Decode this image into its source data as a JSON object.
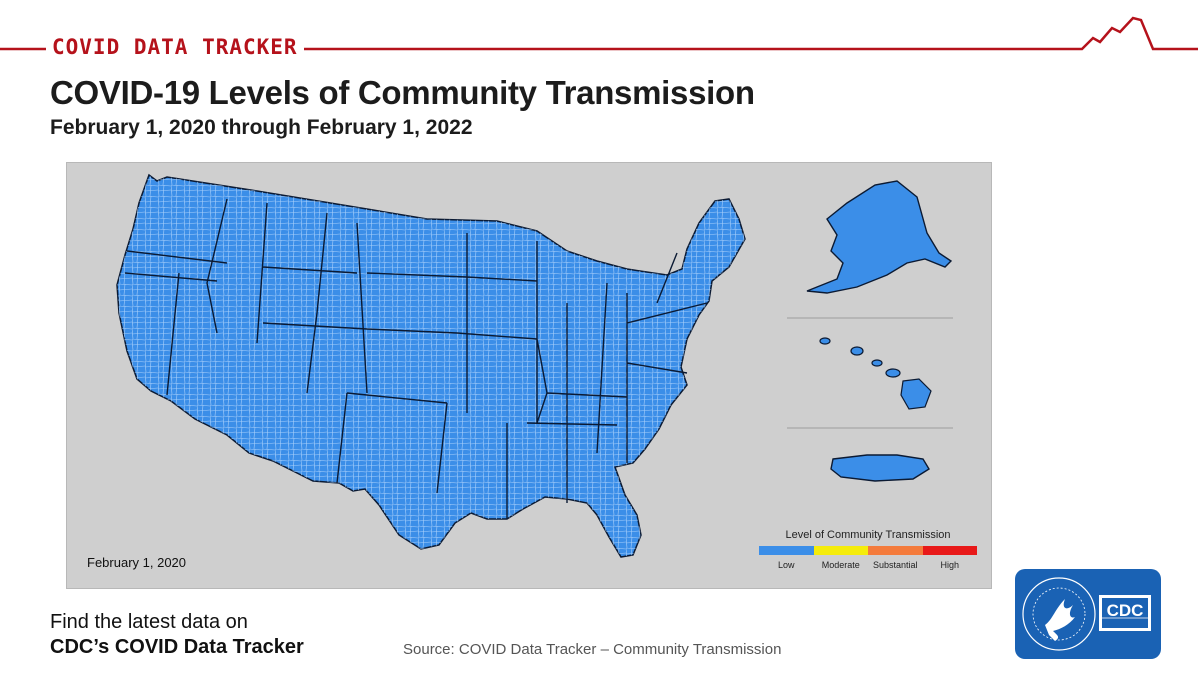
{
  "header": {
    "tracker_label": "COVID DATA TRACKER",
    "title": "COVID-19 Levels of Community Transmission",
    "subtitle": "February 1, 2020 through February 1, 2022"
  },
  "map": {
    "date": "February 1, 2020",
    "default_fill": "#3b8ee8",
    "border_color": "#0b1a33",
    "legend": {
      "title": "Level of Community Transmission",
      "levels": [
        {
          "label": "Low",
          "color": "#3b8ee8"
        },
        {
          "label": "Moderate",
          "color": "#f5ec0b"
        },
        {
          "label": "Substantial",
          "color": "#f47b3c"
        },
        {
          "label": "High",
          "color": "#e81919"
        }
      ]
    }
  },
  "footer": {
    "latest_line1": "Find the latest data on",
    "latest_line2": "CDC’s COVID Data Tracker",
    "source": "Source: COVID Data Tracker – Community Transmission"
  },
  "logo": {
    "text": "CDC",
    "hhs_ring_text": "DEPARTMENT OF HEALTH & HUMAN SERVICES USA",
    "color": "#1a62b4"
  }
}
